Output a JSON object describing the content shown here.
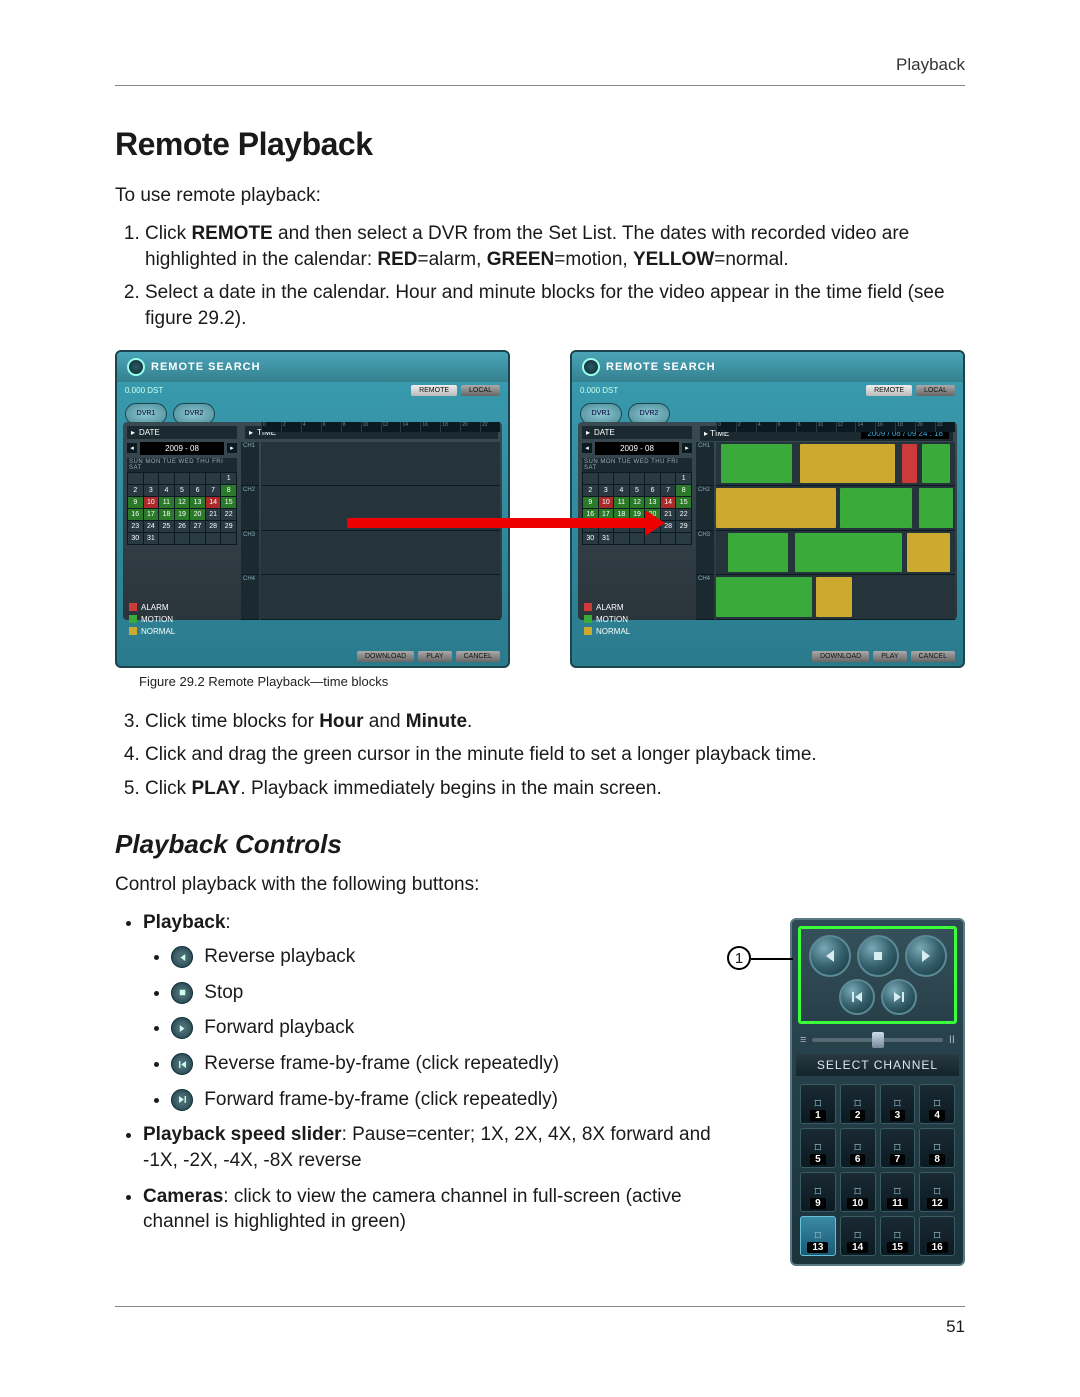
{
  "running_head": "Playback",
  "page_number": "51",
  "h1": "Remote Playback",
  "intro": "To use remote playback:",
  "steps_pre": [
    {
      "n": "1",
      "html": "Click <b>REMOTE</b> and then select a DVR from the Set List. The dates with recorded video are highlighted in the calendar: <b>RED</b>=alarm, <b>GREEN</b>=motion, <b>YELLOW</b>=normal."
    },
    {
      "n": "2",
      "html": "Select a date in the calendar. Hour and minute blocks for the video appear in the time field (see figure 29.2)."
    }
  ],
  "figure_caption": "Figure 29.2 Remote Playback—time blocks",
  "steps_post": [
    {
      "n": "3",
      "html": "Click time blocks for <b>Hour</b> and <b>Minute</b>."
    },
    {
      "n": "4",
      "html": "Click and drag the green cursor in the minute field to set a longer playback time."
    },
    {
      "n": "5",
      "html": "Click <b>PLAY</b>. Playback immediately begins in the main screen."
    }
  ],
  "h2": "Playback Controls",
  "controls_intro": "Control playback with the following buttons:",
  "playback_heading": "Playback",
  "playback_items": [
    {
      "icon": "rev-play",
      "label": "Reverse playback"
    },
    {
      "icon": "stop",
      "label": "Stop"
    },
    {
      "icon": "fwd-play",
      "label": "Forward playback"
    },
    {
      "icon": "rev-frame",
      "label": "Reverse frame-by-frame (click repeatedly)"
    },
    {
      "icon": "fwd-frame",
      "label": "Forward frame-by-frame (click repeatedly)"
    }
  ],
  "speed_bullet": {
    "bold": "Playback speed slider",
    "rest": ": Pause=center; 1X, 2X, 4X, 8X forward and -1X, -2X, -4X, -8X reverse"
  },
  "cameras_bullet": {
    "bold": "Cameras",
    "rest": ": click to view the camera channel in full-screen (active channel is highlighted in green)"
  },
  "callout": "1",
  "remote_window": {
    "title": "REMOTE SEARCH",
    "ip": "0.000 DST",
    "btn_remote": "REMOTE",
    "btn_local": "LOCAL",
    "tab1": "DVR1",
    "tab2": "DVR2",
    "date_label": "DATE",
    "time_label": "TIME",
    "time_value": "2009 / 08 / 09 24 : 18",
    "month": "2009 - 08",
    "weekdays": "SUN MON TUE WED THU FRI SAT",
    "legend": [
      {
        "color": "#cc3a3a",
        "label": "ALARM"
      },
      {
        "color": "#3aaa3a",
        "label": "MOTION"
      },
      {
        "color": "#ccaa30",
        "label": "NORMAL"
      }
    ],
    "bottom_buttons": [
      "DOWNLOAD",
      "PLAY",
      "CANCEL"
    ],
    "calendar_days": [
      "",
      "",
      "",
      "",
      "",
      "",
      "1",
      "2",
      "3",
      "4",
      "5",
      "6",
      "7",
      "8",
      "9",
      "10",
      "11",
      "12",
      "13",
      "14",
      "15",
      "16",
      "17",
      "18",
      "19",
      "20",
      "21",
      "22",
      "23",
      "24",
      "25",
      "26",
      "27",
      "28",
      "29",
      "30",
      "31",
      "",
      "",
      "",
      "",
      ""
    ],
    "calendar_colors": {
      "g": [
        8,
        9,
        11,
        12,
        13,
        15,
        16,
        17,
        18,
        19,
        20
      ],
      "r": [
        10,
        14
      ]
    },
    "channels": [
      "CH1",
      "CH2",
      "CH3",
      "CH4"
    ]
  },
  "panel": {
    "select_channel": "SELECT CHANNEL",
    "pause_glyph": "II",
    "channels": [
      1,
      2,
      3,
      4,
      5,
      6,
      7,
      8,
      9,
      10,
      11,
      12,
      13,
      14,
      15,
      16
    ],
    "active_channel": 13
  },
  "colors": {
    "highlight_green": "#3aff3a",
    "red_arrow": "#ee0000"
  }
}
